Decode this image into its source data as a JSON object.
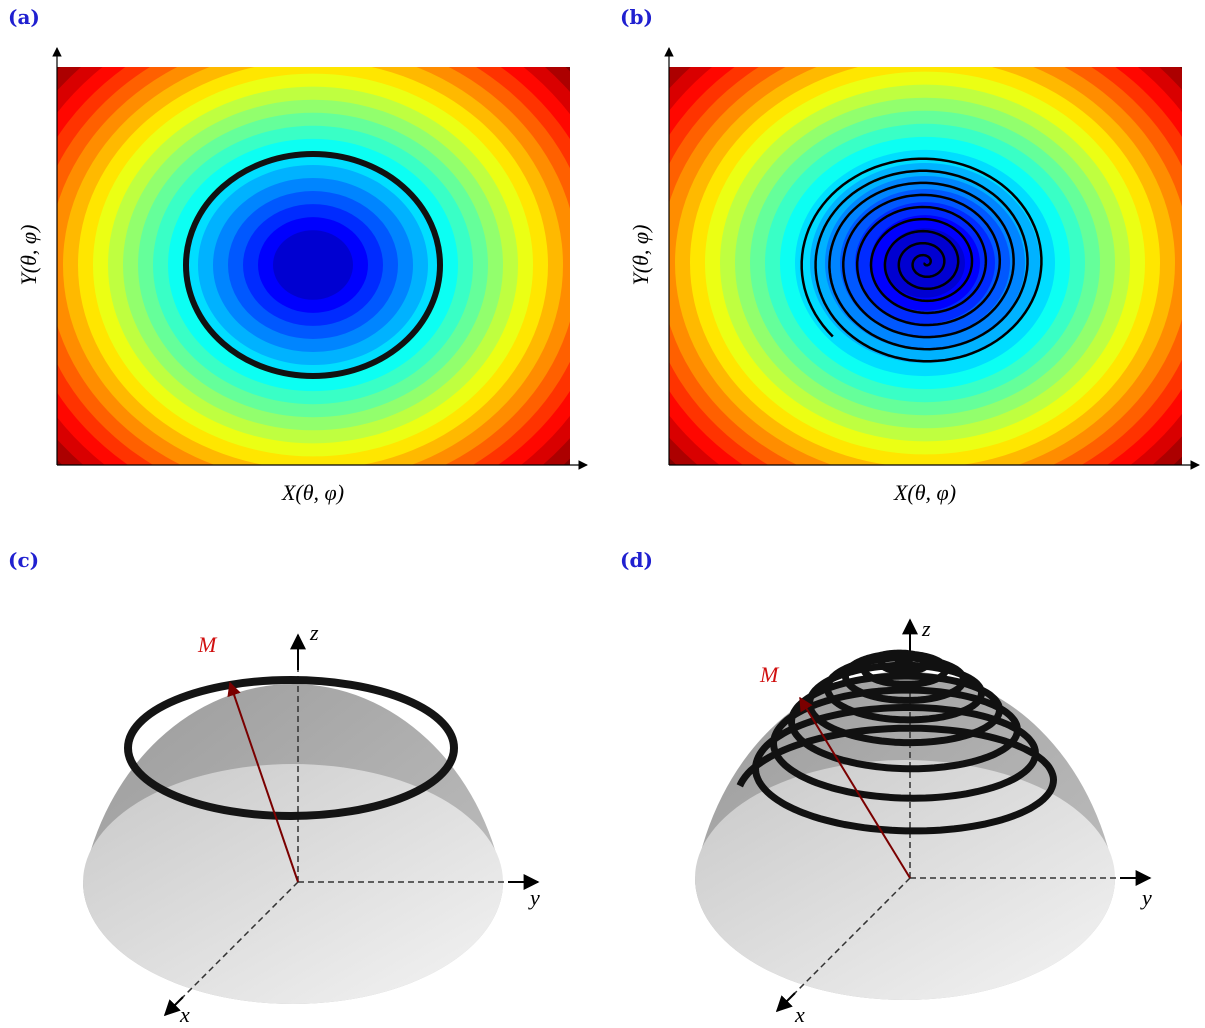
{
  "panels": [
    {
      "label": "(a)",
      "x_axis_label": "X(θ, φ)",
      "y_axis_label": "Y(θ, φ)"
    },
    {
      "label": "(b)",
      "x_axis_label": "X(θ, φ)",
      "y_axis_label": "Y(θ, φ)"
    },
    {
      "label": "(c)",
      "vector_label": "M",
      "axis_labels": {
        "z": "z",
        "y": "y",
        "x": "x"
      }
    },
    {
      "label": "(d)",
      "vector_label": "M",
      "axis_labels": {
        "z": "z",
        "y": "y",
        "x": "x"
      }
    }
  ]
}
